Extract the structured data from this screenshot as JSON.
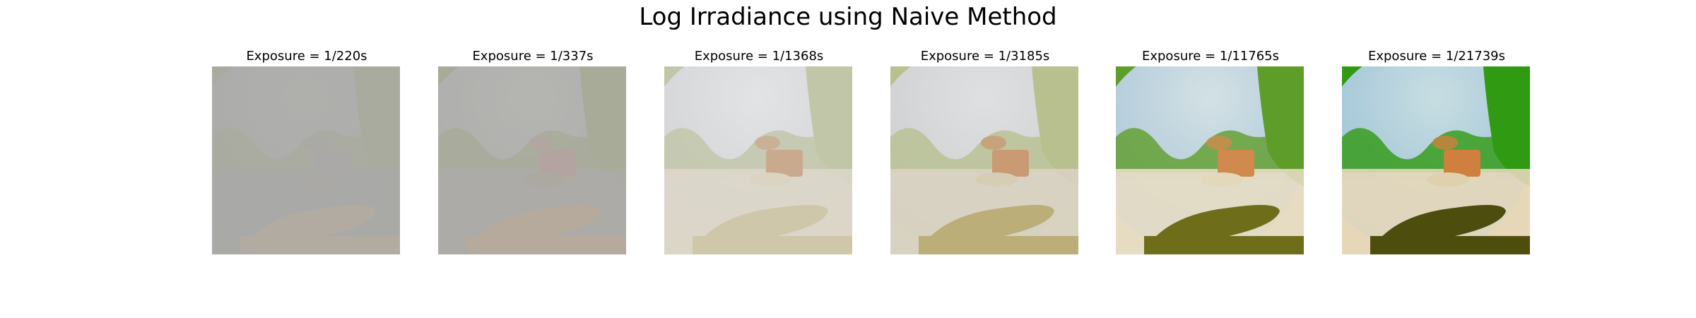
{
  "figure": {
    "title": "Log Irradiance using Naive Method"
  },
  "panels": [
    {
      "title": "Exposure = 1/220s",
      "sky": "#aaaaaa",
      "glow": "#b0b0ae",
      "veg": "#a9ab9f",
      "ground": "#a8a8a6",
      "rock": "#b1aba2",
      "pedestal": "#aaa9a5",
      "box": "#aaa9a8"
    },
    {
      "title": "Exposure = 1/337s",
      "sky": "#acacac",
      "glow": "#b6b6b4",
      "veg": "#a7ab97",
      "ground": "#acaba7",
      "rock": "#b5aa9c",
      "pedestal": "#aca9a0",
      "box": "#b3a4a1"
    },
    {
      "title": "Exposure = 1/1368s",
      "sky": "#cfd0d6",
      "glow": "#e5e6ea",
      "veg": "#c2c6a8",
      "ground": "#dcd6c8",
      "rock": "#cfc7a9",
      "pedestal": "#dbd4c0",
      "box": "#c9aa8f"
    },
    {
      "title": "Exposure = 1/3185s",
      "sky": "#cacbd2",
      "glow": "#e2e3e8",
      "veg": "#b8c090",
      "ground": "#d8d1c0",
      "rock": "#bbae78",
      "pedestal": "#d5cdb4",
      "box": "#c99a74"
    },
    {
      "title": "Exposure = 1/11765s",
      "sky": "#a9c4e6",
      "glow": "#dde7f4",
      "veg": "#5f9d2a",
      "ground": "#e6dcc2",
      "rock": "#6e6d1a",
      "pedestal": "#e3d8b9",
      "box": "#d08a4e"
    },
    {
      "title": "Exposure = 1/21739s",
      "sky": "#9cc0e6",
      "glow": "#d5e3f3",
      "veg": "#2f9a12",
      "ground": "#e4d7b8",
      "rock": "#4d4d0e",
      "pedestal": "#dfd1ae",
      "box": "#cf7f3e"
    }
  ]
}
